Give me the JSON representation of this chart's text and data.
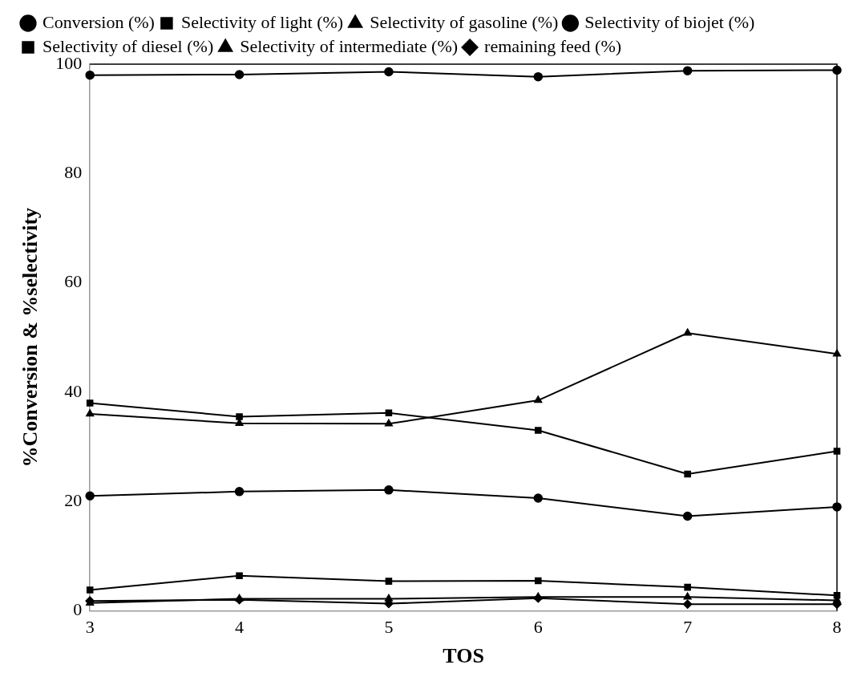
{
  "chart_data": {
    "type": "line",
    "xlabel": "TOS",
    "ylabel": "%Conversion & %selectivity",
    "x": [
      3,
      4,
      5,
      6,
      7,
      8
    ],
    "xlim": [
      3,
      8
    ],
    "xticks": [
      3,
      4,
      5,
      6,
      7,
      8
    ],
    "ylim": [
      0,
      100
    ],
    "yticks": [
      0,
      20,
      40,
      60,
      80,
      100
    ],
    "grid": false,
    "legend": "top",
    "line_style": "solid",
    "series": [
      {
        "name": "Conversion (%)",
        "color": "#000000",
        "marker": "circle",
        "values": [
          98,
          98.1,
          98.6,
          97.7,
          98.8,
          98.9
        ]
      },
      {
        "name": "Selectivity of light (%)",
        "color": "#000000",
        "marker": "square",
        "values": [
          3.8,
          6.4,
          5.4,
          5.5,
          4.3,
          2.8
        ]
      },
      {
        "name": "Selectivity of gasoline (%)",
        "color": "#000000",
        "marker": "triangle",
        "values": [
          1.4,
          2.2,
          2.2,
          2.5,
          2.5,
          1.9
        ]
      },
      {
        "name": "Selectivity of biojet (%)",
        "color": "#000000",
        "marker": "circle",
        "values": [
          21,
          21.8,
          22.1,
          20.6,
          17.3,
          19
        ]
      },
      {
        "name": "Selectivity of diesel (%)",
        "color": "#000000",
        "marker": "square",
        "values": [
          38,
          35.5,
          36.2,
          33,
          25,
          29.2
        ]
      },
      {
        "name": "Selectivity of intermediate (%)",
        "color": "#000000",
        "marker": "triangle",
        "values": [
          36,
          34.3,
          34.2,
          38.5,
          50.8,
          47
        ]
      },
      {
        "name": "remaining feed (%)",
        "color": "#000000",
        "marker": "diamond",
        "values": [
          1.8,
          2.0,
          1.3,
          2.3,
          1.2,
          1.2
        ]
      }
    ]
  }
}
